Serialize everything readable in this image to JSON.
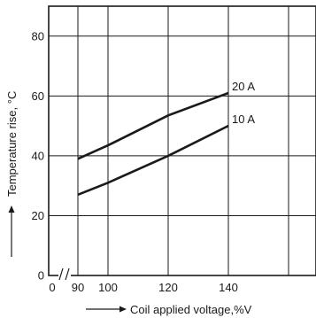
{
  "chart_data": {
    "type": "line",
    "title": "",
    "xlabel": "Coil applied voltage,%V",
    "ylabel": "Temperature rise, °C",
    "xlim": [
      90,
      150
    ],
    "ylim": [
      0,
      90
    ],
    "x_break": true,
    "x_ticks": [
      {
        "value": 90,
        "label": "90"
      },
      {
        "value": 100,
        "label": "100"
      },
      {
        "value": 120,
        "label": "120"
      },
      {
        "value": 140,
        "label": "140"
      }
    ],
    "x_origin_label": "0",
    "y_ticks": [
      {
        "value": 0,
        "label": "0"
      },
      {
        "value": 20,
        "label": "20"
      },
      {
        "value": 40,
        "label": "40"
      },
      {
        "value": 60,
        "label": "60"
      },
      {
        "value": 80,
        "label": "80"
      }
    ],
    "grid": true,
    "series": [
      {
        "name": "20 A",
        "x": [
          90,
          100,
          120,
          140
        ],
        "y": [
          39,
          43.5,
          53.5,
          61
        ]
      },
      {
        "name": "10 A",
        "x": [
          90,
          100,
          120,
          140
        ],
        "y": [
          27,
          31,
          40,
          50
        ]
      }
    ]
  }
}
